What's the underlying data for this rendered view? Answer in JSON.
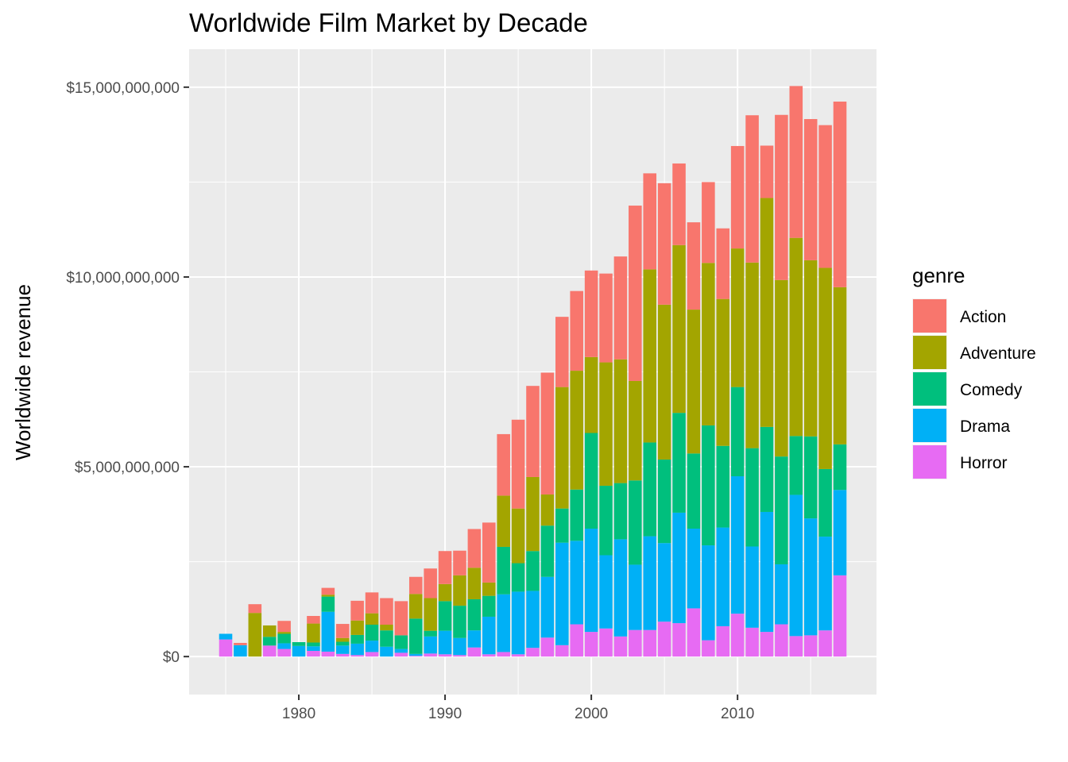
{
  "chart_data": {
    "type": "bar",
    "stacked": true,
    "title": "Worldwide Film Market by Decade",
    "xlabel": "",
    "ylabel": "Worldwide revenue",
    "xlim": [
      1972.5,
      2019.5
    ],
    "ylim": [
      -1000000000,
      16000000000
    ],
    "x_ticks": [
      1980,
      1990,
      2000,
      2010
    ],
    "x_tick_labels": [
      "1980",
      "1990",
      "2000",
      "2010"
    ],
    "y_ticks": [
      0,
      5000000000,
      10000000000,
      15000000000
    ],
    "y_tick_labels": [
      "$0",
      "$5,000,000,000",
      "$10,000,000,000",
      "$15,000,000,000"
    ],
    "grid": true,
    "legend": {
      "title": "genre",
      "position": "right"
    },
    "x": [
      1975,
      1976,
      1977,
      1978,
      1979,
      1980,
      1981,
      1982,
      1983,
      1984,
      1985,
      1986,
      1987,
      1988,
      1989,
      1990,
      1991,
      1992,
      1993,
      1994,
      1995,
      1996,
      1997,
      1998,
      1999,
      2000,
      2001,
      2002,
      2003,
      2004,
      2005,
      2006,
      2007,
      2008,
      2009,
      2010,
      2011,
      2012,
      2013,
      2014,
      2015,
      2016,
      2017
    ],
    "series": [
      {
        "name": "Action",
        "color": "#F8766D",
        "values": [
          0,
          60000000,
          230000000,
          0,
          290000000,
          0,
          200000000,
          180000000,
          370000000,
          520000000,
          550000000,
          700000000,
          900000000,
          450000000,
          780000000,
          870000000,
          650000000,
          1020000000,
          1580000000,
          1620000000,
          2340000000,
          2400000000,
          3210000000,
          1850000000,
          2100000000,
          2280000000,
          2340000000,
          2710000000,
          4620000000,
          2530000000,
          3200000000,
          2150000000,
          2300000000,
          2130000000,
          1860000000,
          2700000000,
          3880000000,
          1380000000,
          4350000000,
          4000000000,
          3720000000,
          3760000000,
          4890000000
        ]
      },
      {
        "name": "Adventure",
        "color": "#A3A500",
        "values": [
          0,
          0,
          1150000000,
          300000000,
          50000000,
          0,
          500000000,
          50000000,
          100000000,
          380000000,
          300000000,
          150000000,
          0,
          650000000,
          860000000,
          450000000,
          800000000,
          830000000,
          350000000,
          1350000000,
          1440000000,
          1950000000,
          820000000,
          3200000000,
          3130000000,
          2000000000,
          3250000000,
          3260000000,
          2620000000,
          4560000000,
          4080000000,
          4420000000,
          3790000000,
          4280000000,
          3870000000,
          3650000000,
          4890000000,
          6030000000,
          4650000000,
          5220000000,
          4640000000,
          5300000000,
          4140000000
        ]
      },
      {
        "name": "Comedy",
        "color": "#00BF7D",
        "values": [
          0,
          0,
          0,
          230000000,
          250000000,
          100000000,
          100000000,
          400000000,
          100000000,
          230000000,
          420000000,
          430000000,
          360000000,
          930000000,
          150000000,
          780000000,
          850000000,
          820000000,
          550000000,
          1250000000,
          750000000,
          1050000000,
          1350000000,
          900000000,
          1350000000,
          2520000000,
          1830000000,
          1480000000,
          2220000000,
          2470000000,
          2200000000,
          2630000000,
          1980000000,
          3160000000,
          2150000000,
          2350000000,
          2590000000,
          2240000000,
          2840000000,
          1550000000,
          2160000000,
          1780000000,
          1200000000
        ]
      },
      {
        "name": "Drama",
        "color": "#00B0F6",
        "values": [
          150000000,
          300000000,
          0,
          0,
          150000000,
          280000000,
          120000000,
          1050000000,
          220000000,
          300000000,
          300000000,
          260000000,
          100000000,
          50000000,
          450000000,
          620000000,
          450000000,
          450000000,
          990000000,
          1520000000,
          1650000000,
          1500000000,
          1600000000,
          2700000000,
          2200000000,
          2720000000,
          1930000000,
          2560000000,
          1720000000,
          2470000000,
          2070000000,
          2910000000,
          2100000000,
          2500000000,
          2600000000,
          3620000000,
          2140000000,
          3160000000,
          1580000000,
          3720000000,
          3080000000,
          2470000000,
          2250000000
        ]
      },
      {
        "name": "Horror",
        "color": "#E76BF3",
        "values": [
          450000000,
          0,
          0,
          290000000,
          200000000,
          0,
          150000000,
          130000000,
          70000000,
          40000000,
          120000000,
          0,
          100000000,
          20000000,
          80000000,
          60000000,
          40000000,
          240000000,
          60000000,
          120000000,
          60000000,
          230000000,
          500000000,
          300000000,
          850000000,
          650000000,
          740000000,
          530000000,
          700000000,
          700000000,
          920000000,
          880000000,
          1270000000,
          430000000,
          800000000,
          1130000000,
          760000000,
          650000000,
          850000000,
          540000000,
          560000000,
          690000000,
          2140000000
        ]
      }
    ]
  }
}
